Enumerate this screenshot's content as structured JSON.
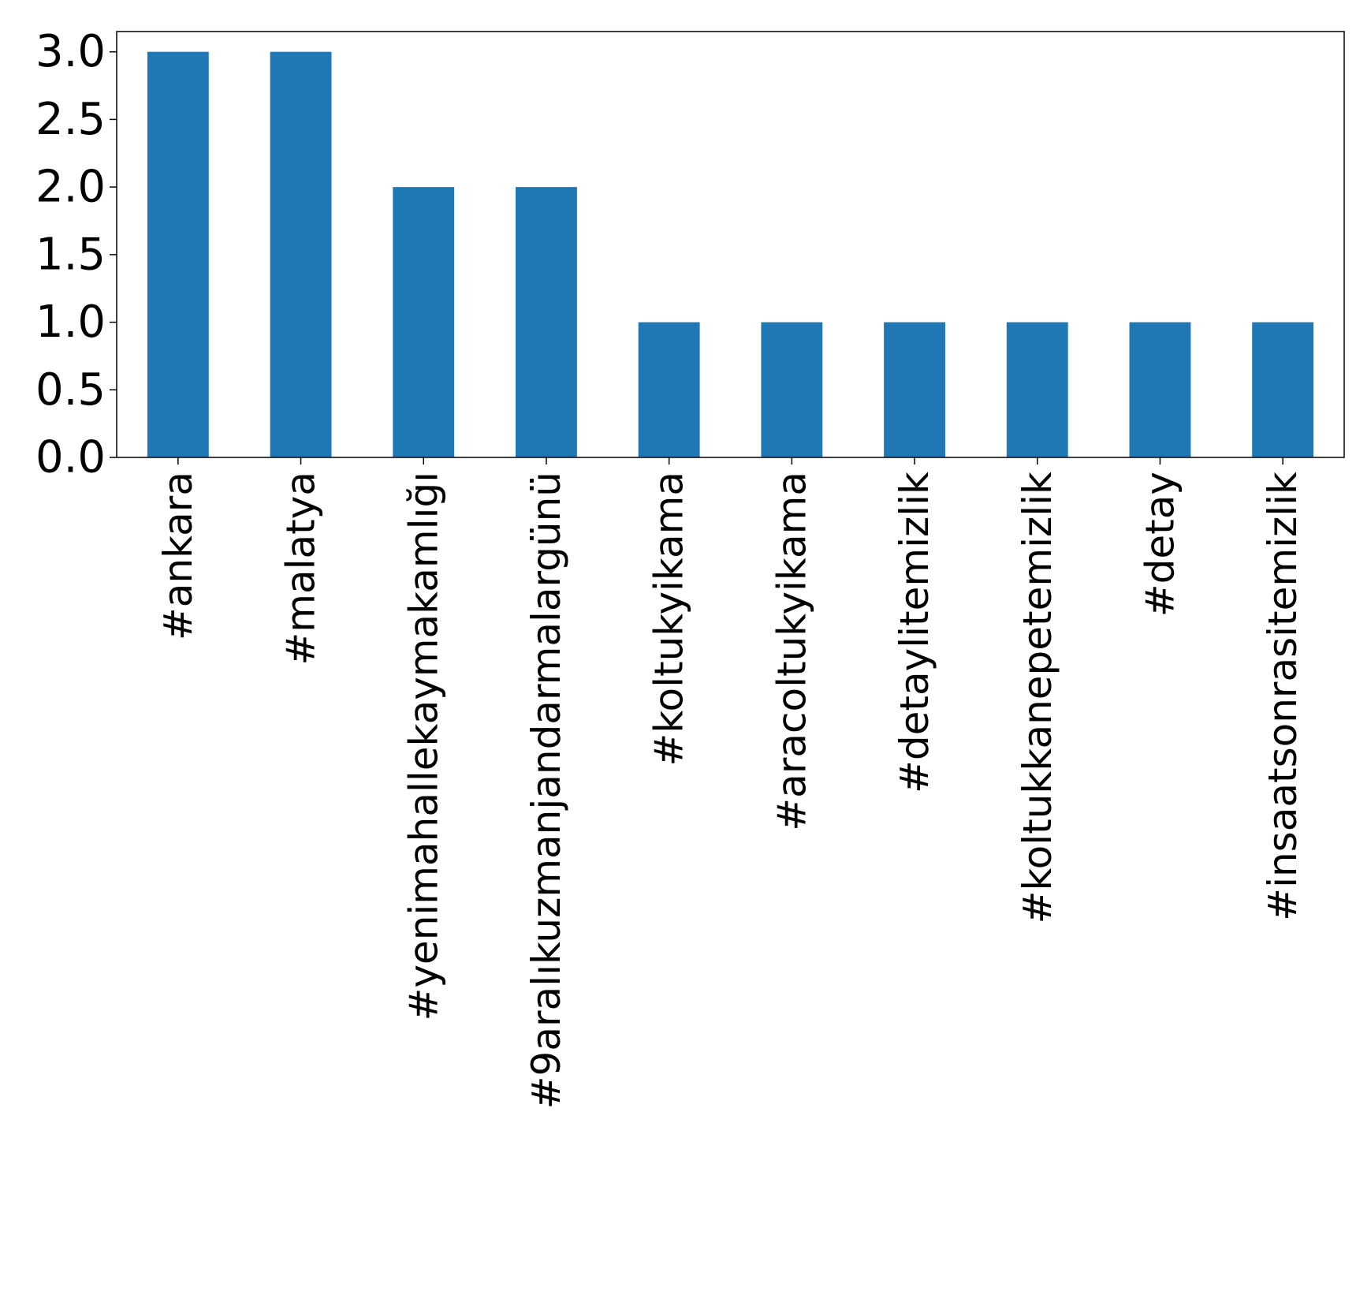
{
  "chart_data": {
    "type": "bar",
    "title": "",
    "xlabel": "",
    "ylabel": "",
    "categories": [
      "#ankara",
      "#malatya",
      "#yenimahallekaymakamlığı",
      "#9aralıkuzmanjandarmalargünü",
      "#koltukyikama",
      "#aracoltukyikama",
      "#detaylitemizlik",
      "#koltukkanepetemizlik",
      "#detay",
      "#insaatsonrasitemizlik"
    ],
    "values": [
      3,
      3,
      2,
      2,
      1,
      1,
      1,
      1,
      1,
      1
    ],
    "ylim": [
      0,
      3.15
    ],
    "yticks": [
      0.0,
      0.5,
      1.0,
      1.5,
      2.0,
      2.5,
      3.0
    ],
    "ytick_labels": [
      "0.0",
      "0.5",
      "1.0",
      "1.5",
      "2.0",
      "2.5",
      "3.0"
    ],
    "bar_color": "#1f77b4",
    "grid": false,
    "legend": "none"
  }
}
